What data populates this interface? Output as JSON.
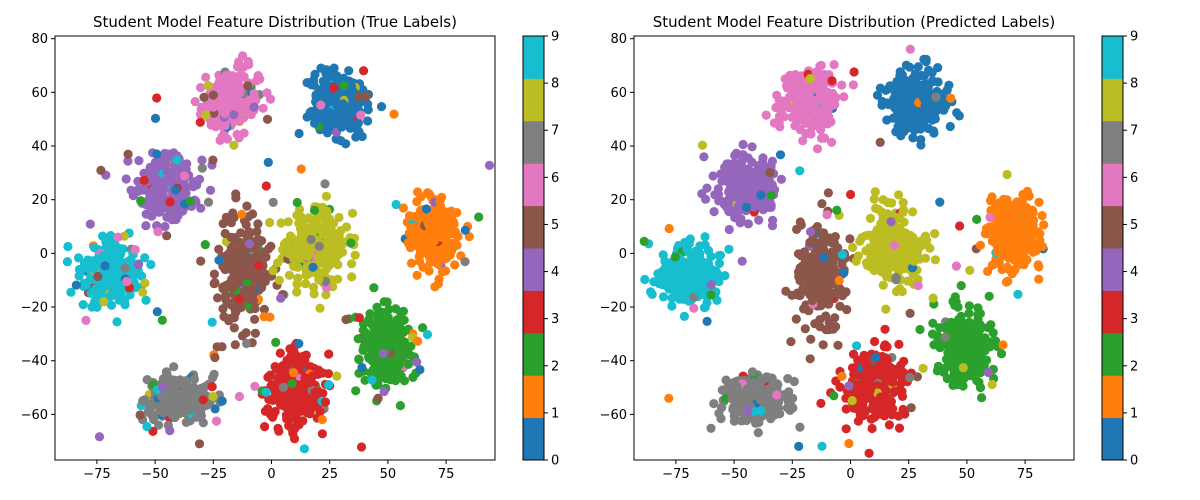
{
  "chart_data": [
    {
      "type": "scatter",
      "title": "Student Model Feature Distribution (True Labels)",
      "xlabel": "",
      "ylabel": "",
      "xlim": [
        -93,
        96
      ],
      "ylim": [
        -77,
        81
      ],
      "x_ticks": [
        -75,
        -50,
        -25,
        0,
        25,
        50,
        75
      ],
      "x_tick_labels": [
        "−75",
        "−50",
        "−25",
        "0",
        "25",
        "50",
        "75"
      ],
      "y_ticks": [
        -60,
        -40,
        -20,
        0,
        20,
        40,
        60,
        80
      ],
      "y_tick_labels": [
        "−60",
        "−40",
        "−20",
        "0",
        "20",
        "40",
        "60",
        "80"
      ],
      "grid": false,
      "colorbar": {
        "ticks": [
          0,
          1,
          2,
          3,
          4,
          5,
          6,
          7,
          8,
          9
        ],
        "tick_labels": [
          "0",
          "1",
          "2",
          "3",
          "4",
          "5",
          "6",
          "7",
          "8",
          "9"
        ],
        "colors": [
          "#1f77b4",
          "#ff7f0e",
          "#2ca02c",
          "#d62728",
          "#9467bd",
          "#8c564b",
          "#e377c2",
          "#7f7f7f",
          "#bcbd22",
          "#17becf"
        ]
      },
      "clusters": [
        {
          "label": 0,
          "center": [
            28,
            56
          ],
          "spread": [
            10,
            9
          ],
          "color_class": 0
        },
        {
          "label": 1,
          "center": [
            70,
            8
          ],
          "spread": [
            9,
            11
          ],
          "color_class": 1
        },
        {
          "label": 2,
          "center": [
            50,
            -35
          ],
          "spread": [
            9,
            11
          ],
          "color_class": 2
        },
        {
          "label": 3,
          "center": [
            10,
            -50
          ],
          "spread": [
            10,
            11
          ],
          "color_class": 3
        },
        {
          "label": 4,
          "center": [
            -45,
            25
          ],
          "spread": [
            10,
            9
          ],
          "color_class": 4
        },
        {
          "label": 5,
          "center": [
            -12,
            -8
          ],
          "spread": [
            8,
            16
          ],
          "color_class": 5
        },
        {
          "label": 6,
          "center": [
            -18,
            57
          ],
          "spread": [
            10,
            9
          ],
          "color_class": 6
        },
        {
          "label": 7,
          "center": [
            -40,
            -55
          ],
          "spread": [
            12,
            7
          ],
          "color_class": 7
        },
        {
          "label": 8,
          "center": [
            18,
            3
          ],
          "spread": [
            11,
            11
          ],
          "color_class": 8
        },
        {
          "label": 9,
          "center": [
            -70,
            -8
          ],
          "spread": [
            10,
            9
          ],
          "color_class": 9
        }
      ],
      "noise_fraction": 0.08
    },
    {
      "type": "scatter",
      "title": "Student Model Feature Distribution (Predicted Labels)",
      "xlabel": "",
      "ylabel": "",
      "xlim": [
        -93,
        96
      ],
      "ylim": [
        -77,
        81
      ],
      "x_ticks": [
        -75,
        -50,
        -25,
        0,
        25,
        50,
        75
      ],
      "x_tick_labels": [
        "−75",
        "−50",
        "−25",
        "0",
        "25",
        "50",
        "75"
      ],
      "y_ticks": [
        -60,
        -40,
        -20,
        0,
        20,
        40,
        60,
        80
      ],
      "y_tick_labels": [
        "−60",
        "−40",
        "−20",
        "0",
        "20",
        "40",
        "60",
        "80"
      ],
      "grid": false,
      "colorbar": {
        "ticks": [
          0,
          1,
          2,
          3,
          4,
          5,
          6,
          7,
          8,
          9
        ],
        "tick_labels": [
          "0",
          "1",
          "2",
          "3",
          "4",
          "5",
          "6",
          "7",
          "8",
          "9"
        ],
        "colors": [
          "#1f77b4",
          "#ff7f0e",
          "#2ca02c",
          "#d62728",
          "#9467bd",
          "#8c564b",
          "#e377c2",
          "#7f7f7f",
          "#bcbd22",
          "#17becf"
        ]
      },
      "clusters": [
        {
          "label": 0,
          "center": [
            28,
            56
          ],
          "spread": [
            10,
            9
          ],
          "color_class": 0
        },
        {
          "label": 1,
          "center": [
            70,
            8
          ],
          "spread": [
            9,
            11
          ],
          "color_class": 1
        },
        {
          "label": 2,
          "center": [
            50,
            -35
          ],
          "spread": [
            9,
            11
          ],
          "color_class": 2
        },
        {
          "label": 3,
          "center": [
            10,
            -50
          ],
          "spread": [
            10,
            11
          ],
          "color_class": 3
        },
        {
          "label": 4,
          "center": [
            -45,
            25
          ],
          "spread": [
            10,
            9
          ],
          "color_class": 4
        },
        {
          "label": 5,
          "center": [
            -12,
            -8
          ],
          "spread": [
            8,
            16
          ],
          "color_class": 5
        },
        {
          "label": 6,
          "center": [
            -18,
            57
          ],
          "spread": [
            10,
            9
          ],
          "color_class": 6
        },
        {
          "label": 7,
          "center": [
            -40,
            -55
          ],
          "spread": [
            12,
            7
          ],
          "color_class": 7
        },
        {
          "label": 8,
          "center": [
            18,
            3
          ],
          "spread": [
            11,
            11
          ],
          "color_class": 8
        },
        {
          "label": 9,
          "center": [
            -70,
            -8
          ],
          "spread": [
            10,
            9
          ],
          "color_class": 9
        }
      ],
      "noise_fraction": 0.03
    }
  ]
}
